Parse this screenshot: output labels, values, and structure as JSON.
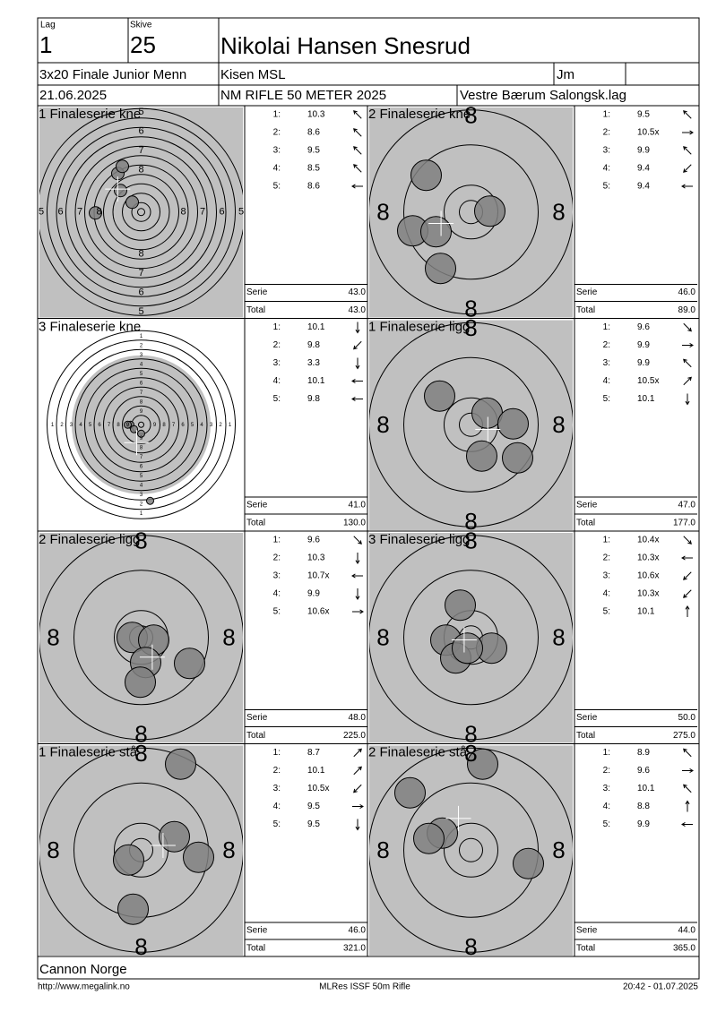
{
  "header": {
    "lag_label": "Lag",
    "lag": "1",
    "skive_label": "Skive",
    "skive": "25",
    "name": "Nikolai Hansen Snesrud",
    "class": "3x20 Finale Junior Menn",
    "club": "Kisen MSL",
    "code": "Jm",
    "date": "21.06.2025",
    "event": "NM RIFLE 50 METER 2025",
    "location": "Vestre Bærum Salongsk.lag"
  },
  "panels": [
    {
      "title": "1 Finaleserie kne",
      "ring_labels": [
        "8",
        "7",
        "6",
        "5"
      ],
      "shots": [
        {
          "n": "1:",
          "v": "10.3"
        },
        {
          "n": "2:",
          "v": "8.6"
        },
        {
          "n": "3:",
          "v": "9.5"
        },
        {
          "n": "4:",
          "v": "8.5"
        },
        {
          "n": "5:",
          "v": "8.6"
        }
      ],
      "serie_label": "Serie",
      "serie": "43.0",
      "total_label": "Total",
      "total": "43.0"
    },
    {
      "title": "2 Finaleserie kne",
      "ring_labels": [
        "8"
      ],
      "shots": [
        {
          "n": "1:",
          "v": "9.5"
        },
        {
          "n": "2:",
          "v": "10.5x"
        },
        {
          "n": "3:",
          "v": "9.9"
        },
        {
          "n": "4:",
          "v": "9.4"
        },
        {
          "n": "5:",
          "v": "9.4"
        }
      ],
      "serie_label": "Serie",
      "serie": "46.0",
      "total_label": "Total",
      "total": "89.0"
    },
    {
      "title": "3 Finaleserie kne",
      "ring_labels": [
        "9",
        "8",
        "7",
        "6",
        "5",
        "4",
        "3",
        "2",
        "1"
      ],
      "shots": [
        {
          "n": "1:",
          "v": "10.1"
        },
        {
          "n": "2:",
          "v": "9.8"
        },
        {
          "n": "3:",
          "v": "3.3"
        },
        {
          "n": "4:",
          "v": "10.1"
        },
        {
          "n": "5:",
          "v": "9.8"
        }
      ],
      "serie_label": "Serie",
      "serie": "41.0",
      "total_label": "Total",
      "total": "130.0"
    },
    {
      "title": "1 Finaleserie ligg",
      "ring_labels": [
        "8"
      ],
      "shots": [
        {
          "n": "1:",
          "v": "9.6"
        },
        {
          "n": "2:",
          "v": "9.9"
        },
        {
          "n": "3:",
          "v": "9.9"
        },
        {
          "n": "4:",
          "v": "10.5x"
        },
        {
          "n": "5:",
          "v": "10.1"
        }
      ],
      "serie_label": "Serie",
      "serie": "47.0",
      "total_label": "Total",
      "total": "177.0"
    },
    {
      "title": "2 Finaleserie ligg",
      "ring_labels": [
        "8"
      ],
      "shots": [
        {
          "n": "1:",
          "v": "9.6"
        },
        {
          "n": "2:",
          "v": "10.3"
        },
        {
          "n": "3:",
          "v": "10.7x"
        },
        {
          "n": "4:",
          "v": "9.9"
        },
        {
          "n": "5:",
          "v": "10.6x"
        }
      ],
      "serie_label": "Serie",
      "serie": "48.0",
      "total_label": "Total",
      "total": "225.0"
    },
    {
      "title": "3 Finaleserie ligg",
      "ring_labels": [
        "8"
      ],
      "shots": [
        {
          "n": "1:",
          "v": "10.4x"
        },
        {
          "n": "2:",
          "v": "10.3x"
        },
        {
          "n": "3:",
          "v": "10.6x"
        },
        {
          "n": "4:",
          "v": "10.3x"
        },
        {
          "n": "5:",
          "v": "10.1"
        }
      ],
      "serie_label": "Serie",
      "serie": "50.0",
      "total_label": "Total",
      "total": "275.0"
    },
    {
      "title": "1 Finaleserie stå",
      "ring_labels": [
        "8"
      ],
      "shots": [
        {
          "n": "1:",
          "v": "8.7"
        },
        {
          "n": "2:",
          "v": "10.1"
        },
        {
          "n": "3:",
          "v": "10.5x"
        },
        {
          "n": "4:",
          "v": "9.5"
        },
        {
          "n": "5:",
          "v": "9.5"
        }
      ],
      "serie_label": "Serie",
      "serie": "46.0",
      "total_label": "Total",
      "total": "321.0"
    },
    {
      "title": "2 Finaleserie stå",
      "ring_labels": [
        "8"
      ],
      "shots": [
        {
          "n": "1:",
          "v": "8.9"
        },
        {
          "n": "2:",
          "v": "9.6"
        },
        {
          "n": "3:",
          "v": "10.1"
        },
        {
          "n": "4:",
          "v": "8.8"
        },
        {
          "n": "5:",
          "v": "9.9"
        }
      ],
      "serie_label": "Serie",
      "serie": "44.0",
      "total_label": "Total",
      "total": "365.0"
    }
  ],
  "footer": {
    "org": "Cannon Norge",
    "url": "http://www.megalink.no",
    "software": "MLRes ISSF 50m Rifle",
    "timestamp": "20:42 - 01.07.2025"
  }
}
